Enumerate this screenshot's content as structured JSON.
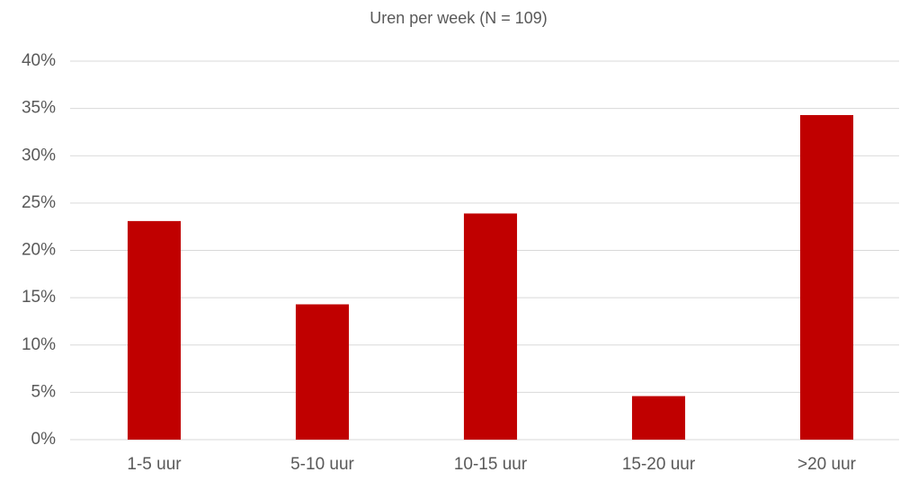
{
  "chart_data": {
    "type": "bar",
    "title": "Uren per week (N = 109)",
    "categories": [
      "1-5 uur",
      "5-10 uur",
      "10-15 uur",
      "15-20 uur",
      ">20 uur"
    ],
    "values": [
      23.1,
      14.3,
      23.9,
      4.6,
      34.3
    ],
    "color": "#c00000",
    "ylim": [
      0,
      40
    ],
    "yticks": [
      {
        "value": 0,
        "label": "0%"
      },
      {
        "value": 5,
        "label": "5%"
      },
      {
        "value": 10,
        "label": "10%"
      },
      {
        "value": 15,
        "label": "15%"
      },
      {
        "value": 20,
        "label": "20%"
      },
      {
        "value": 25,
        "label": "25%"
      },
      {
        "value": 30,
        "label": "30%"
      },
      {
        "value": 35,
        "label": "35%"
      },
      {
        "value": 40,
        "label": "40%"
      }
    ],
    "grid": true
  }
}
